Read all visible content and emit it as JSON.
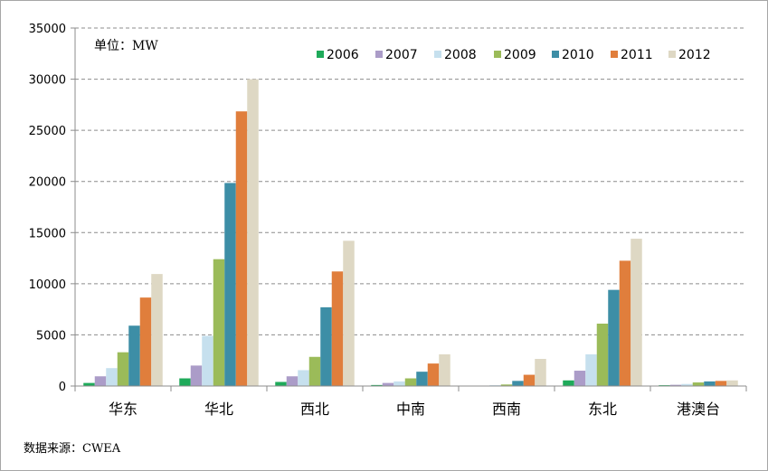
{
  "chart_data": {
    "type": "bar",
    "categories": [
      "华东",
      "华北",
      "西北",
      "中南",
      "西南",
      "东北",
      "港澳台"
    ],
    "series": [
      {
        "name": "2006",
        "color": "#1faa5a",
        "values": [
          300,
          750,
          400,
          100,
          20,
          550,
          80
        ]
      },
      {
        "name": "2007",
        "color": "#ab9cc8",
        "values": [
          950,
          2000,
          950,
          300,
          30,
          1500,
          120
        ]
      },
      {
        "name": "2008",
        "color": "#c6e0ee",
        "values": [
          1750,
          4900,
          1550,
          450,
          80,
          3100,
          200
        ]
      },
      {
        "name": "2009",
        "color": "#9bbb59",
        "values": [
          3300,
          12400,
          2850,
          750,
          150,
          6100,
          350
        ]
      },
      {
        "name": "2010",
        "color": "#3d8ea6",
        "values": [
          5900,
          19850,
          7700,
          1400,
          500,
          9400,
          450
        ]
      },
      {
        "name": "2011",
        "color": "#e07e3c",
        "values": [
          8650,
          26850,
          11200,
          2200,
          1100,
          12250,
          500
        ]
      },
      {
        "name": "2012",
        "color": "#ded8c4",
        "values": [
          10950,
          30000,
          14200,
          3100,
          2650,
          14400,
          550
        ]
      }
    ],
    "ylim": [
      0,
      35000
    ],
    "yticks": [
      0,
      5000,
      10000,
      15000,
      20000,
      25000,
      30000,
      35000
    ],
    "grid": true,
    "legend_position": "top-right"
  },
  "unit_label": "单位：MW",
  "source_label": "数据来源：CWEA"
}
